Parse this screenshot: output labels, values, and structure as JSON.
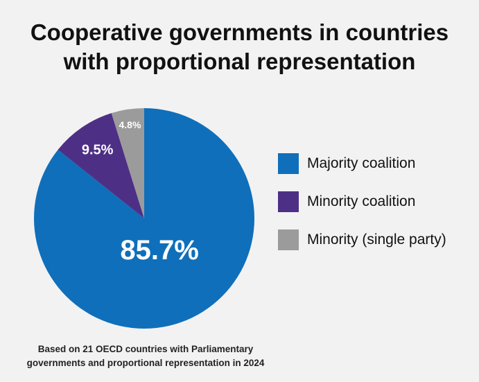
{
  "chart_data": {
    "type": "pie",
    "title_lines": [
      "Cooperative governments in countries",
      "with proportional representation"
    ],
    "slices": [
      {
        "label": "Majority coalition",
        "value": 85.7,
        "value_label": "85.7%",
        "color": "#0f6fba"
      },
      {
        "label": "Minority coalition",
        "value": 9.5,
        "value_label": "9.5%",
        "color": "#4e2f86"
      },
      {
        "label": "Minority (single party)",
        "value": 4.8,
        "value_label": "4.8%",
        "color": "#9b9b9b"
      }
    ],
    "legend_position": "right",
    "footnote_lines": [
      "Based on 21 OECD countries with Parliamentary",
      "governments and proportional representation in 2024"
    ]
  }
}
